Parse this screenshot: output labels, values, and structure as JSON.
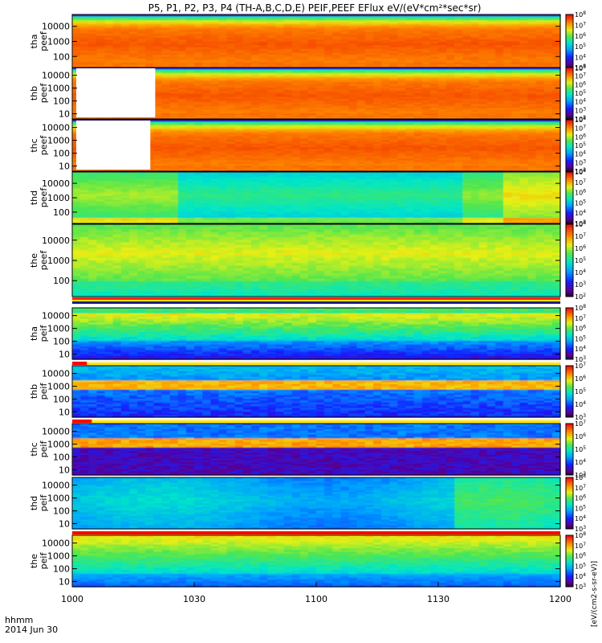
{
  "chart_data": {
    "type": "heatmap",
    "title": "P5, P1, P2, P3, P4 (TH-A,B,C,D,E) PEIF,PEEF EFlux eV/(eV*cm²*sec*sr)",
    "x_axis": {
      "ticks": [
        "1000",
        "1030",
        "1100",
        "1130",
        "1200"
      ],
      "corner_label_1": "hhmm",
      "corner_label_2": "2014 Jun 30"
    },
    "y_ticks": [
      "10",
      "100",
      "1000",
      "10000"
    ],
    "colorbar_tick_values": [
      2,
      3,
      4,
      5,
      6,
      7,
      8
    ],
    "colorbar_units": "[eV/(cm2-s-sr-eV)]",
    "panels": [
      {
        "probe": "tha",
        "product": "peef",
        "kind": "electron",
        "yticks": [
          "100",
          "1000",
          "10000"
        ],
        "cb_min": 3,
        "cb_max": 8,
        "gap_end": 0.0,
        "bar_end": 0.0,
        "stripe_below": false
      },
      {
        "probe": "thb",
        "product": "peef",
        "kind": "electron",
        "yticks": [
          "10",
          "100",
          "1000",
          "10000"
        ],
        "cb_min": 2,
        "cb_max": 8,
        "gap_end": 0.17,
        "bar_end": 0.0,
        "stripe_below": false
      },
      {
        "probe": "thc",
        "product": "peef",
        "kind": "electron",
        "yticks": [
          "10",
          "100",
          "1000",
          "10000"
        ],
        "cb_min": 2,
        "cb_max": 8,
        "gap_end": 0.16,
        "bar_end": 0.0,
        "stripe_below": false
      },
      {
        "probe": "thd",
        "product": "peef",
        "kind": "electron2",
        "yticks": [
          "100",
          "1000",
          "10000"
        ],
        "cb_min": 3,
        "cb_max": 8,
        "gap_end": 0.0,
        "bar_end": 0.0,
        "stripe_below": false
      },
      {
        "probe": "the",
        "product": "peef",
        "kind": "electron3",
        "yticks": [
          "100",
          "1000",
          "10000"
        ],
        "cb_min": 2,
        "cb_max": 8,
        "gap_end": 0.0,
        "bar_end": 0.0,
        "stripe_below": true
      },
      {
        "probe": "tha",
        "product": "peif",
        "kind": "ion",
        "yticks": [
          "10",
          "100",
          "1000",
          "10000"
        ],
        "cb_min": 3,
        "cb_max": 8,
        "gap_end": 0.0,
        "bar_end": 0.03,
        "stripe_below": true
      },
      {
        "probe": "thb",
        "product": "peif",
        "kind": "ion2",
        "yticks": [
          "10",
          "100",
          "1000",
          "10000"
        ],
        "cb_min": 3,
        "cb_max": 7,
        "gap_end": 0.0,
        "bar_end": 0.04,
        "stripe_below": true
      },
      {
        "probe": "thc",
        "product": "peif",
        "kind": "ion3",
        "yticks": [
          "10",
          "100",
          "1000",
          "10000"
        ],
        "cb_min": 3,
        "cb_max": 7,
        "gap_end": 0.0,
        "bar_end": 0.19,
        "stripe_below": true
      },
      {
        "probe": "thd",
        "product": "peif",
        "kind": "ion4",
        "yticks": [
          "10",
          "100",
          "1000",
          "10000"
        ],
        "cb_min": 3,
        "cb_max": 8,
        "gap_end": 0.0,
        "bar_end": 1.0,
        "stripe_below": true
      },
      {
        "probe": "the",
        "product": "peif",
        "kind": "ion5",
        "yticks": [
          "10",
          "100",
          "1000",
          "10000"
        ],
        "cb_min": 3,
        "cb_max": 8,
        "gap_end": 0.0,
        "bar_end": 0.0,
        "stripe_below": false
      }
    ]
  }
}
